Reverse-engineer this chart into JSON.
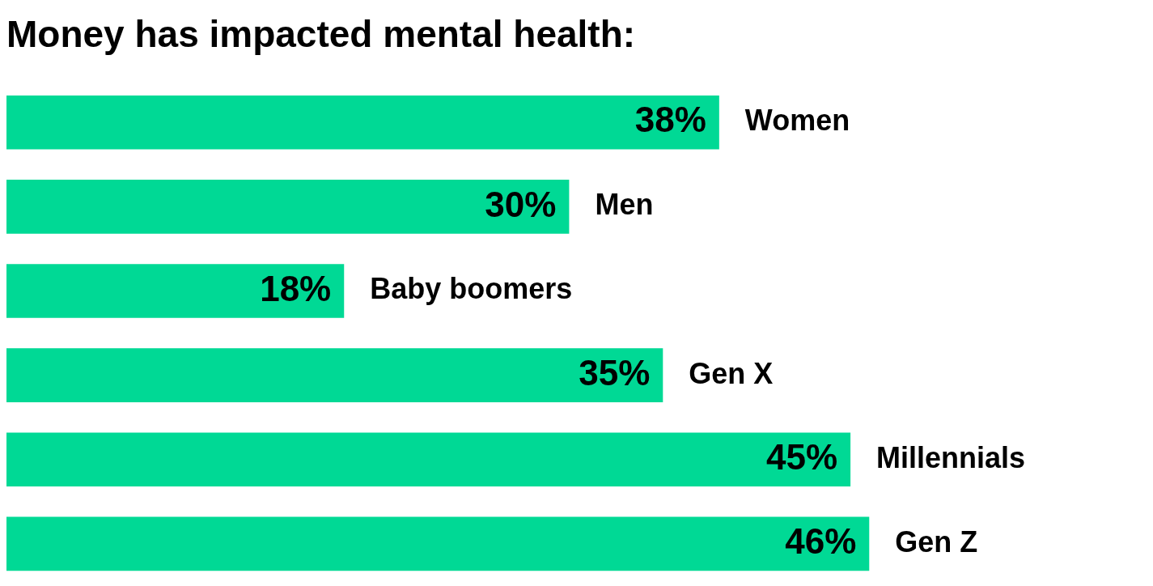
{
  "chart_data": {
    "type": "bar",
    "orientation": "horizontal",
    "title": "Money has impacted mental health:",
    "categories": [
      "Women",
      "Men",
      "Baby boomers",
      "Gen X",
      "Millennials",
      "Gen Z"
    ],
    "values": [
      38,
      30,
      18,
      35,
      45,
      46
    ],
    "value_labels": [
      "38%",
      "30%",
      "18%",
      "35%",
      "45%",
      "46%"
    ],
    "color": "#00d995",
    "legend": false
  }
}
